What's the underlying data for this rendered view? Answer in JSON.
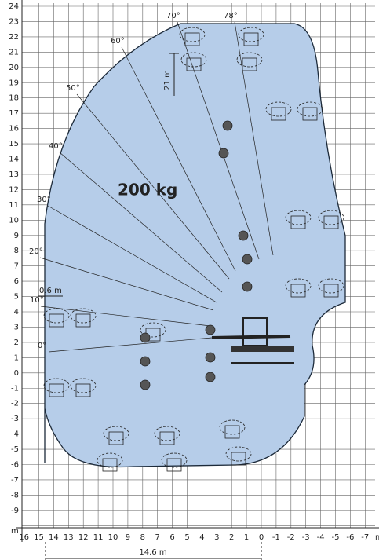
{
  "y_axis": {
    "unit": "m",
    "labels": [
      24,
      23,
      22,
      21,
      20,
      19,
      18,
      17,
      16,
      15,
      14,
      13,
      12,
      11,
      10,
      9,
      8,
      7,
      6,
      5,
      4,
      3,
      2,
      1,
      0,
      -1,
      -2,
      -3,
      -4,
      -5,
      -6,
      -7,
      -8,
      -9
    ]
  },
  "x_axis": {
    "unit": "m",
    "labels": [
      16,
      15,
      14,
      13,
      12,
      11,
      10,
      9,
      8,
      7,
      6,
      5,
      4,
      3,
      2,
      1,
      0,
      -1,
      -2,
      -3,
      -4,
      -5,
      -6,
      -7
    ]
  },
  "angles": [
    "0°",
    "10°",
    "20°",
    "30°",
    "40°",
    "50°",
    "60°",
    "70°",
    "78°"
  ],
  "load": "200 kg",
  "dimensions": {
    "height": "21 m",
    "reach": "14.6 m",
    "offset": "0.6 m"
  }
}
